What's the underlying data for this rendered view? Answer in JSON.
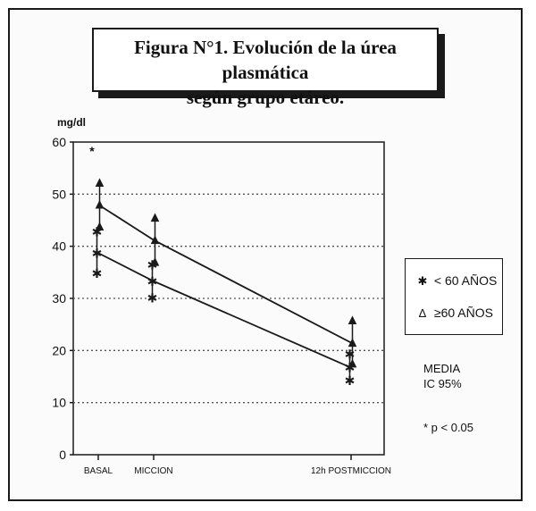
{
  "figure": {
    "title_line1": "Figura N°1. Evolución de la úrea plasmática",
    "title_line2": "según grupo etáreo."
  },
  "legend": {
    "under60": {
      "symbol": "✱",
      "label": "< 60 AÑOS"
    },
    "over60": {
      "symbol": "Δ",
      "label": "≥60 AÑOS"
    }
  },
  "notes": {
    "media": "MEDIA",
    "ic": "IC 95%",
    "p": "* p < 0.05"
  },
  "chart_data": {
    "type": "line",
    "ylabel": "mg/dl",
    "ylim": [
      0,
      60
    ],
    "yticks": [
      "0",
      "10",
      "20",
      "30",
      "40",
      "50",
      "60"
    ],
    "categories": [
      "BASAL",
      "MICCION",
      "12h POSTMICCION"
    ],
    "grid": "horizontal dotted",
    "series": [
      {
        "name": "< 60 AÑOS",
        "symbol": "✱",
        "mean": [
          38.7,
          33.3,
          16.7
        ],
        "ci_low": [
          34.8,
          30.1,
          14.2
        ],
        "ci_high": [
          42.8,
          36.4,
          19.3
        ]
      },
      {
        "name": "≥60 AÑOS",
        "symbol": "Δ",
        "mean": [
          48.0,
          41.2,
          21.5
        ],
        "ci_low": [
          43.8,
          37.0,
          17.5
        ],
        "ci_high": [
          52.2,
          45.5,
          25.8
        ]
      }
    ],
    "annotations": [
      {
        "text": "*",
        "category": "BASAL",
        "y": 58.5
      }
    ]
  }
}
